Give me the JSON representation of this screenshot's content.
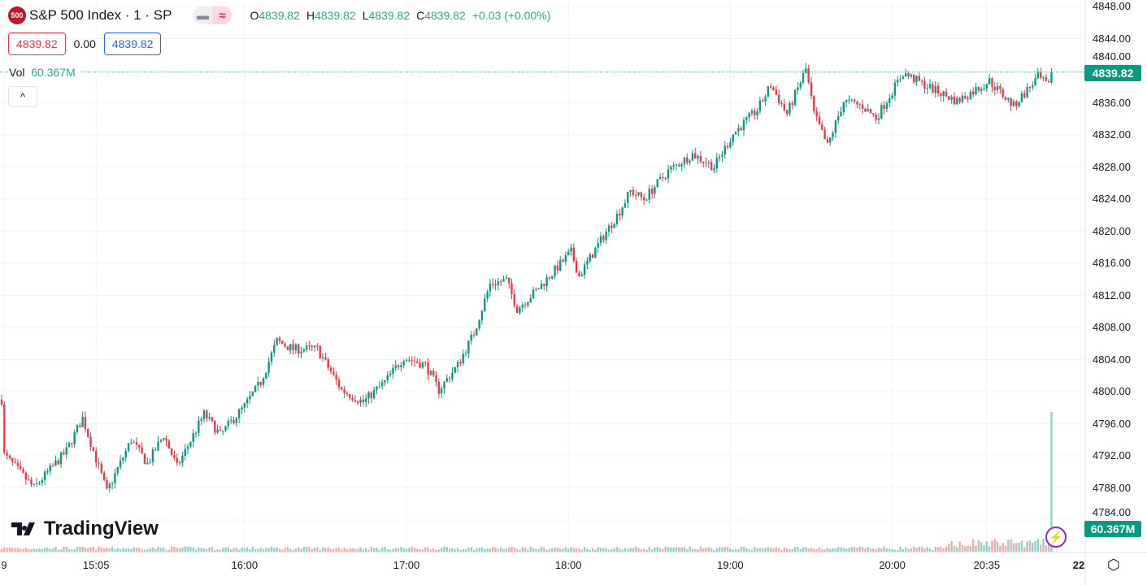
{
  "header": {
    "badge": "500",
    "title": "S&P 500 Index · 1 · SP",
    "pill_left": "▬",
    "pill_right": "≈",
    "ohlc": {
      "o_label": "O",
      "o": "4839.82",
      "h_label": "H",
      "h": "4839.82",
      "l_label": "L",
      "l": "4839.82",
      "c_label": "C",
      "c": "4839.82",
      "change": "+0.03 (+0.00%)"
    },
    "sell_price": "4839.82",
    "spread": "0.00",
    "buy_price": "4839.82",
    "vol_label": "Vol",
    "vol_value": "60.367M",
    "collapse": "^"
  },
  "logo": "TradingView",
  "colors": {
    "up": "#089981",
    "down": "#f23645",
    "up_vol": "#8fd2c7",
    "down_vol": "#f7a9a7"
  },
  "chart_data": {
    "type": "candlestick",
    "title": "S&P 500 Index · 1 · SP",
    "ylim": [
      4784,
      4848
    ],
    "y_ticks": [
      "4848.00",
      "4844.00",
      "4840.00",
      "4836.00",
      "4832.00",
      "4828.00",
      "4824.00",
      "4820.00",
      "4816.00",
      "4812.00",
      "4808.00",
      "4804.00",
      "4800.00",
      "4796.00",
      "4792.00",
      "4788.00",
      "4784.00"
    ],
    "x_ticks": [
      {
        "label": "9",
        "t": "14:31"
      },
      {
        "label": "15:05",
        "t": "15:05"
      },
      {
        "label": "16:00",
        "t": "16:00"
      },
      {
        "label": "17:00",
        "t": "17:00"
      },
      {
        "label": "18:00",
        "t": "18:00"
      },
      {
        "label": "19:00",
        "t": "19:00"
      },
      {
        "label": "20:00",
        "t": "20:00"
      },
      {
        "label": "20:35",
        "t": "20:35"
      },
      {
        "label": "22",
        "t": "21:10"
      }
    ],
    "start": "14:30",
    "end": "21:00",
    "close_path": [
      [
        "14:30",
        4799
      ],
      [
        "14:31",
        4792.1
      ],
      [
        "14:42",
        4788
      ],
      [
        "14:54",
        4792.6
      ],
      [
        "15:00",
        4796.7
      ],
      [
        "15:09",
        4787.5
      ],
      [
        "15:18",
        4794
      ],
      [
        "15:24",
        4791
      ],
      [
        "15:30",
        4794.6
      ],
      [
        "15:35",
        4790.6
      ],
      [
        "15:45",
        4797.2
      ],
      [
        "15:51",
        4794.6
      ],
      [
        "16:00",
        4798.2
      ],
      [
        "16:06",
        4801.2
      ],
      [
        "16:12",
        4806.3
      ],
      [
        "16:18",
        4805.3
      ],
      [
        "16:27",
        4805.3
      ],
      [
        "16:36",
        4800.2
      ],
      [
        "16:44",
        4798.7
      ],
      [
        "16:52",
        4801.2
      ],
      [
        "16:59",
        4804.3
      ],
      [
        "17:07",
        4803.3
      ],
      [
        "17:12",
        4800.2
      ],
      [
        "17:19",
        4803.3
      ],
      [
        "17:25",
        4807.3
      ],
      [
        "17:31",
        4813.4
      ],
      [
        "17:37",
        4813.9
      ],
      [
        "17:41",
        4810.3
      ],
      [
        "17:49",
        4812.9
      ],
      [
        "18:01",
        4817.4
      ],
      [
        "18:04",
        4814.4
      ],
      [
        "18:13",
        4819.4
      ],
      [
        "18:19",
        4822.5
      ],
      [
        "18:23",
        4825
      ],
      [
        "18:28",
        4824
      ],
      [
        "18:37",
        4827.5
      ],
      [
        "18:46",
        4829.6
      ],
      [
        "18:54",
        4828
      ],
      [
        "19:01",
        4832.1
      ],
      [
        "19:10",
        4835.1
      ],
      [
        "19:15",
        4838.2
      ],
      [
        "19:21",
        4834.6
      ],
      [
        "19:28",
        4840.2
      ],
      [
        "19:31",
        4834.6
      ],
      [
        "19:36",
        4830.6
      ],
      [
        "19:42",
        4836.2
      ],
      [
        "19:49",
        4835.6
      ],
      [
        "19:54",
        4834.1
      ],
      [
        "20:04",
        4839.7
      ],
      [
        "20:12",
        4838.2
      ],
      [
        "20:24",
        4836.2
      ],
      [
        "20:36",
        4838.7
      ],
      [
        "20:45",
        4835.6
      ],
      [
        "20:54",
        4839.2
      ],
      [
        "20:59",
        4837.7
      ],
      [
        "21:00",
        4839.82
      ]
    ],
    "last_price": "4839.82",
    "volume": {
      "typical": 1.5,
      "last": 60.367,
      "unit": "M",
      "last_label": "60.367M"
    }
  }
}
